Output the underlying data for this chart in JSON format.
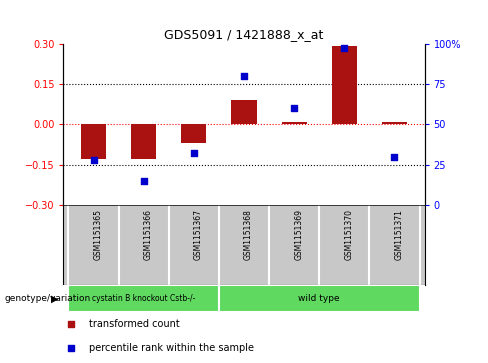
{
  "title": "GDS5091 / 1421888_x_at",
  "samples": [
    "GSM1151365",
    "GSM1151366",
    "GSM1151367",
    "GSM1151368",
    "GSM1151369",
    "GSM1151370",
    "GSM1151371"
  ],
  "red_bars": [
    -0.13,
    -0.13,
    -0.07,
    0.09,
    0.01,
    0.29,
    0.01
  ],
  "blue_pct": [
    28,
    15,
    32,
    80,
    60,
    97,
    30
  ],
  "ylim_left": [
    -0.3,
    0.3
  ],
  "ylim_right": [
    0,
    100
  ],
  "yticks_left": [
    -0.3,
    -0.15,
    0,
    0.15,
    0.3
  ],
  "yticks_right": [
    0,
    25,
    50,
    75,
    100
  ],
  "groups": [
    {
      "label": "cystatin B knockout Cstb-/-",
      "n_samples": 3,
      "color": "#5fd95f"
    },
    {
      "label": "wild type",
      "n_samples": 4,
      "color": "#5fd95f"
    }
  ],
  "group_row_color": "#c8c8c8",
  "bar_color": "#aa1111",
  "dot_color": "#0000cc",
  "legend_red_label": "transformed count",
  "legend_blue_label": "percentile rank within the sample",
  "genotype_label": "genotype/variation",
  "background_color": "#ffffff"
}
